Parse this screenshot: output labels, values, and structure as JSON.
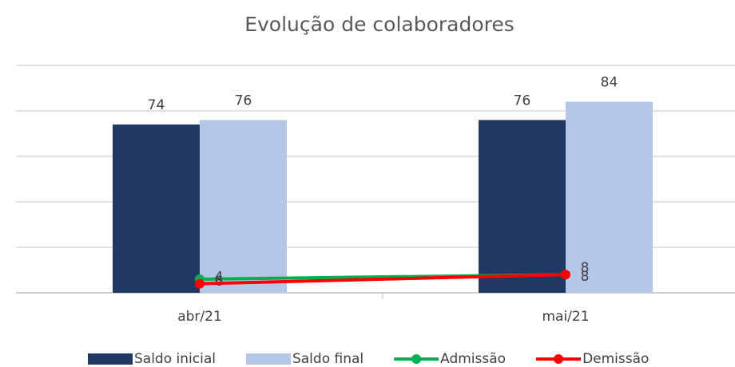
{
  "chart_data": {
    "type": "bar_line",
    "title": "Evolução de colaboradores",
    "categories": [
      "abr/21",
      "mai/21"
    ],
    "series": [
      {
        "name": "Saldo inicial",
        "type": "bar",
        "color": "#203864",
        "values": [
          74,
          76
        ]
      },
      {
        "name": "Saldo final",
        "type": "bar",
        "color": "#b4c7e7",
        "values": [
          76,
          84
        ]
      },
      {
        "name": "Admissão",
        "type": "line",
        "color": "#00b050",
        "values": [
          6,
          8
        ]
      },
      {
        "name": "Demissão",
        "type": "line",
        "color": "#ff0000",
        "values": [
          4,
          8
        ]
      }
    ],
    "ylim": [
      0,
      100
    ],
    "yticks": [
      0,
      20,
      40,
      60,
      80,
      100
    ],
    "grid": true,
    "legend": "bottom"
  }
}
